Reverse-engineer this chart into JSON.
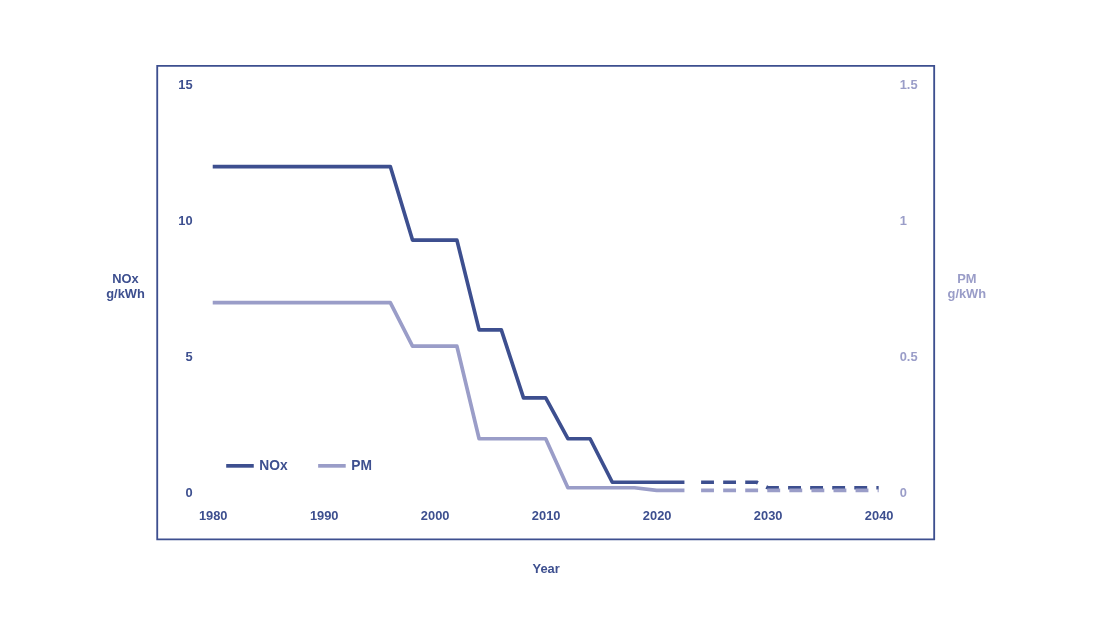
{
  "chart_data": {
    "type": "line",
    "xlabel": "Year",
    "ylabel": "NOx g/kWh",
    "y2label": "PM g/kWh",
    "xlim": [
      1975,
      2045
    ],
    "xticks": [
      {
        "value": 1980,
        "label": "1980"
      },
      {
        "value": 1990,
        "label": "1990"
      },
      {
        "value": 2000,
        "label": "2000"
      },
      {
        "value": 2010,
        "label": "2010"
      },
      {
        "value": 2020,
        "label": "2020"
      },
      {
        "value": 2030,
        "label": "2030"
      },
      {
        "value": 2040,
        "label": "2040"
      }
    ],
    "ylim": [
      -1.7,
      15.7
    ],
    "yticks": [
      0,
      5,
      10,
      15
    ],
    "y2lim": [
      -0.17,
      1.57
    ],
    "y2ticks": [
      {
        "value": 0,
        "label": "0"
      },
      0.5,
      {
        "value": 1,
        "label": "1"
      },
      1.5
    ],
    "grid": false,
    "legend": "bottom left",
    "series": [
      {
        "name": "NOx",
        "color": "#3d4f8f",
        "x": [
          1980,
          1996,
          1998,
          2002,
          2004,
          2006,
          2008,
          2010,
          2012,
          2014,
          2016,
          2022.5
        ],
        "values": [
          12,
          12,
          9.3,
          9.3,
          6,
          6,
          3.5,
          3.5,
          2,
          2,
          0.4,
          0.4
        ]
      },
      {
        "color": "#3d4f8f",
        "line_style": "dashed",
        "x": [
          2024,
          2029,
          2030,
          2040
        ],
        "values": [
          0.4,
          0.4,
          0.2,
          0.2
        ]
      },
      {
        "name": "PM",
        "color": "#9a9dc8",
        "axis": "y2",
        "x": [
          1980,
          1996,
          1998,
          2002,
          2004,
          2010,
          2012,
          2018,
          2020,
          2022.5
        ],
        "values": [
          0.7,
          0.7,
          0.54,
          0.54,
          0.2,
          0.2,
          0.02,
          0.02,
          0.01,
          0.01
        ]
      },
      {
        "color": "#9a9dc8",
        "axis": "y2",
        "line_style": "dashed",
        "x": [
          2024,
          2040
        ],
        "values": [
          0.01,
          0.01
        ]
      }
    ]
  }
}
